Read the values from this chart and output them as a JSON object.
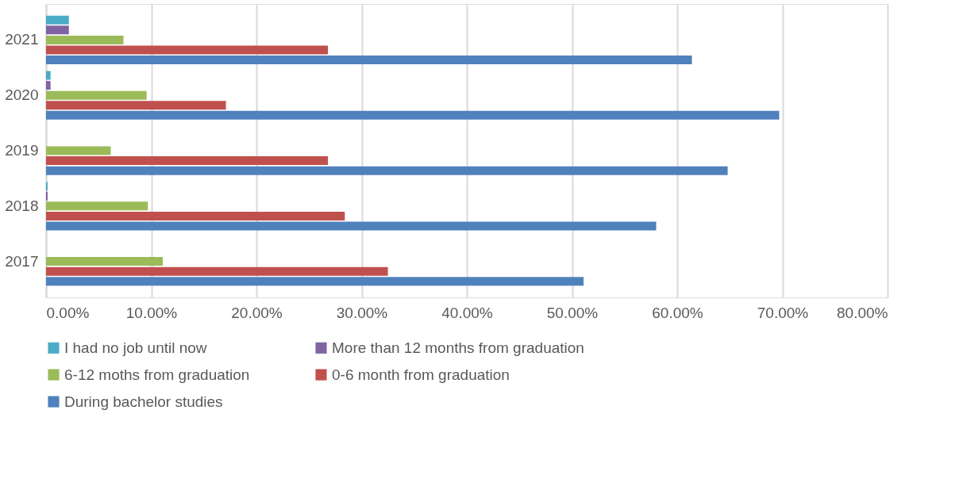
{
  "chart_data": {
    "type": "bar",
    "orientation": "horizontal",
    "categories": [
      "2021",
      "2020",
      "2019",
      "2018",
      "2017"
    ],
    "series": [
      {
        "name": "I had no job until now",
        "color": "#4bacc6",
        "values": [
          2.17,
          0.43,
          0,
          0.15,
          0
        ]
      },
      {
        "name": "More than 12 months from graduation",
        "color": "#8064a2",
        "values": [
          2.17,
          0.43,
          0,
          0.15,
          0
        ]
      },
      {
        "name": "6-12 moths from graduation",
        "color": "#9bbb59",
        "values": [
          7.36,
          9.56,
          6.15,
          9.68,
          11.1
        ]
      },
      {
        "name": "0-6 month from graduation",
        "color": "#c0504d",
        "values": [
          26.8,
          17.1,
          26.8,
          28.4,
          32.5
        ]
      },
      {
        "name": "During bachelor studies",
        "color": "#4f81bd",
        "values": [
          61.4,
          69.7,
          64.8,
          58.0,
          51.1
        ]
      }
    ],
    "xlim": [
      0,
      80
    ],
    "xticks": [
      {
        "value": 0,
        "label": "0.00%"
      },
      {
        "value": 10,
        "label": "10.00%"
      },
      {
        "value": 20,
        "label": "20.00%"
      },
      {
        "value": 30,
        "label": "30.00%"
      },
      {
        "value": 40,
        "label": "40.00%"
      },
      {
        "value": 50,
        "label": "50.00%"
      },
      {
        "value": 60,
        "label": "60.00%"
      },
      {
        "value": 70,
        "label": "70.00%"
      },
      {
        "value": 80,
        "label": "80.00%"
      }
    ],
    "grid": "x",
    "legend": "bottom"
  }
}
